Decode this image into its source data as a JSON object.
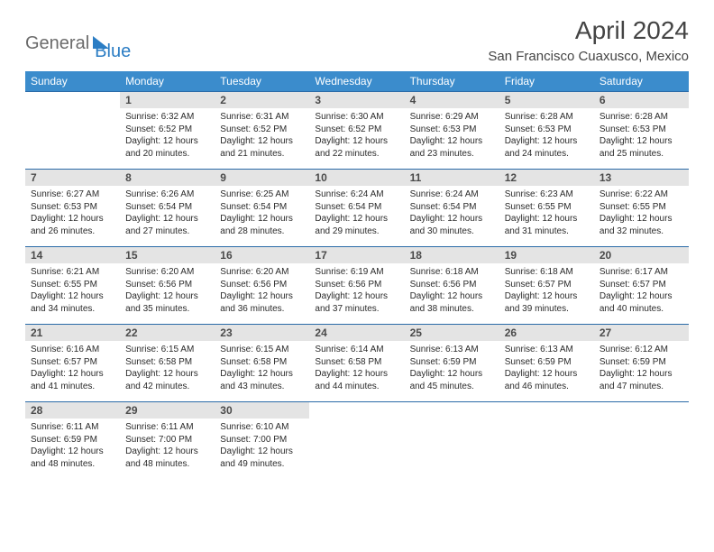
{
  "logo": {
    "text1": "General",
    "text2": "Blue"
  },
  "title": "April 2024",
  "location": "San Francisco Cuaxusco, Mexico",
  "colors": {
    "header_bg": "#3b8ccc",
    "header_text": "#ffffff",
    "row_divider": "#2b6ba8",
    "daynum_bg": "#e4e4e4",
    "body_text": "#2a2a2a",
    "logo_blue": "#2b7dc4",
    "logo_gray": "#6b6b6b"
  },
  "weekdays": [
    "Sunday",
    "Monday",
    "Tuesday",
    "Wednesday",
    "Thursday",
    "Friday",
    "Saturday"
  ],
  "weeks": [
    [
      null,
      {
        "d": "1",
        "sr": "6:32 AM",
        "ss": "6:52 PM",
        "dl": "12 hours and 20 minutes."
      },
      {
        "d": "2",
        "sr": "6:31 AM",
        "ss": "6:52 PM",
        "dl": "12 hours and 21 minutes."
      },
      {
        "d": "3",
        "sr": "6:30 AM",
        "ss": "6:52 PM",
        "dl": "12 hours and 22 minutes."
      },
      {
        "d": "4",
        "sr": "6:29 AM",
        "ss": "6:53 PM",
        "dl": "12 hours and 23 minutes."
      },
      {
        "d": "5",
        "sr": "6:28 AM",
        "ss": "6:53 PM",
        "dl": "12 hours and 24 minutes."
      },
      {
        "d": "6",
        "sr": "6:28 AM",
        "ss": "6:53 PM",
        "dl": "12 hours and 25 minutes."
      }
    ],
    [
      {
        "d": "7",
        "sr": "6:27 AM",
        "ss": "6:53 PM",
        "dl": "12 hours and 26 minutes."
      },
      {
        "d": "8",
        "sr": "6:26 AM",
        "ss": "6:54 PM",
        "dl": "12 hours and 27 minutes."
      },
      {
        "d": "9",
        "sr": "6:25 AM",
        "ss": "6:54 PM",
        "dl": "12 hours and 28 minutes."
      },
      {
        "d": "10",
        "sr": "6:24 AM",
        "ss": "6:54 PM",
        "dl": "12 hours and 29 minutes."
      },
      {
        "d": "11",
        "sr": "6:24 AM",
        "ss": "6:54 PM",
        "dl": "12 hours and 30 minutes."
      },
      {
        "d": "12",
        "sr": "6:23 AM",
        "ss": "6:55 PM",
        "dl": "12 hours and 31 minutes."
      },
      {
        "d": "13",
        "sr": "6:22 AM",
        "ss": "6:55 PM",
        "dl": "12 hours and 32 minutes."
      }
    ],
    [
      {
        "d": "14",
        "sr": "6:21 AM",
        "ss": "6:55 PM",
        "dl": "12 hours and 34 minutes."
      },
      {
        "d": "15",
        "sr": "6:20 AM",
        "ss": "6:56 PM",
        "dl": "12 hours and 35 minutes."
      },
      {
        "d": "16",
        "sr": "6:20 AM",
        "ss": "6:56 PM",
        "dl": "12 hours and 36 minutes."
      },
      {
        "d": "17",
        "sr": "6:19 AM",
        "ss": "6:56 PM",
        "dl": "12 hours and 37 minutes."
      },
      {
        "d": "18",
        "sr": "6:18 AM",
        "ss": "6:56 PM",
        "dl": "12 hours and 38 minutes."
      },
      {
        "d": "19",
        "sr": "6:18 AM",
        "ss": "6:57 PM",
        "dl": "12 hours and 39 minutes."
      },
      {
        "d": "20",
        "sr": "6:17 AM",
        "ss": "6:57 PM",
        "dl": "12 hours and 40 minutes."
      }
    ],
    [
      {
        "d": "21",
        "sr": "6:16 AM",
        "ss": "6:57 PM",
        "dl": "12 hours and 41 minutes."
      },
      {
        "d": "22",
        "sr": "6:15 AM",
        "ss": "6:58 PM",
        "dl": "12 hours and 42 minutes."
      },
      {
        "d": "23",
        "sr": "6:15 AM",
        "ss": "6:58 PM",
        "dl": "12 hours and 43 minutes."
      },
      {
        "d": "24",
        "sr": "6:14 AM",
        "ss": "6:58 PM",
        "dl": "12 hours and 44 minutes."
      },
      {
        "d": "25",
        "sr": "6:13 AM",
        "ss": "6:59 PM",
        "dl": "12 hours and 45 minutes."
      },
      {
        "d": "26",
        "sr": "6:13 AM",
        "ss": "6:59 PM",
        "dl": "12 hours and 46 minutes."
      },
      {
        "d": "27",
        "sr": "6:12 AM",
        "ss": "6:59 PM",
        "dl": "12 hours and 47 minutes."
      }
    ],
    [
      {
        "d": "28",
        "sr": "6:11 AM",
        "ss": "6:59 PM",
        "dl": "12 hours and 48 minutes."
      },
      {
        "d": "29",
        "sr": "6:11 AM",
        "ss": "7:00 PM",
        "dl": "12 hours and 48 minutes."
      },
      {
        "d": "30",
        "sr": "6:10 AM",
        "ss": "7:00 PM",
        "dl": "12 hours and 49 minutes."
      },
      null,
      null,
      null,
      null
    ]
  ],
  "labels": {
    "sunrise": "Sunrise:",
    "sunset": "Sunset:",
    "daylight": "Daylight:"
  }
}
